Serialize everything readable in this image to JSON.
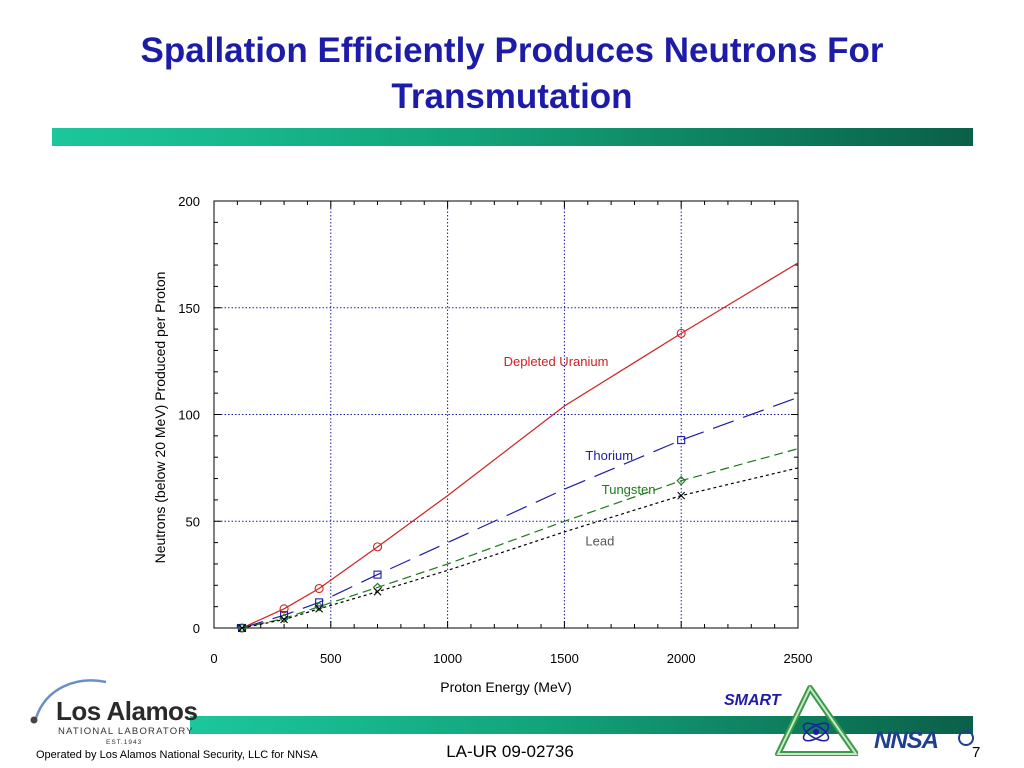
{
  "slide": {
    "title": "Spallation Efficiently Produces Neutrons For Transmutation",
    "report_id": "LA-UR 09-02736",
    "page_number": "7",
    "operator_note": "Operated by Los Alamos National Security, LLC for NNSA"
  },
  "logos": {
    "lanl_name": "Los Alamos",
    "lanl_sub": "NATIONAL LABORATORY",
    "lanl_est": "EST.1943",
    "smart": "SMART",
    "nnsa": "NNSA"
  },
  "colors": {
    "title": "#1c1ca8",
    "grid": "#1c1ca8",
    "uranium": "#d02020",
    "thorium": "#1c1ca8",
    "tungsten": "#1a7a1a",
    "lead": "#000000",
    "lead_label": "#555555"
  },
  "chart_data": {
    "type": "line",
    "title": "",
    "xlabel": "Proton Energy (MeV)",
    "ylabel": "Neutrons (below 20 MeV) Produced per Proton",
    "xlim": [
      0,
      2500
    ],
    "ylim": [
      0,
      200
    ],
    "xticks": [
      0,
      500,
      1000,
      1500,
      2000,
      2500
    ],
    "yticks": [
      0,
      50,
      100,
      150,
      200
    ],
    "grid": true,
    "series": [
      {
        "name": "Depleted Uranium",
        "marker": "circle",
        "dash": "solid",
        "color": "#d02020",
        "x": [
          120,
          300,
          450,
          700,
          1000,
          1500,
          2000,
          2500
        ],
        "y": [
          0,
          9,
          18.5,
          38,
          62,
          104,
          138,
          171
        ],
        "marker_x": [
          120,
          300,
          450,
          700,
          2000
        ],
        "marker_y": [
          0,
          9,
          18.5,
          38,
          138
        ]
      },
      {
        "name": "Thorium",
        "marker": "square",
        "dash": "long-dash",
        "color": "#1c1ca8",
        "x": [
          120,
          300,
          450,
          700,
          1000,
          1500,
          2000,
          2500
        ],
        "y": [
          0,
          6,
          12,
          25,
          40,
          65,
          88,
          108
        ],
        "marker_x": [
          120,
          300,
          450,
          700,
          2000
        ],
        "marker_y": [
          0,
          6,
          12,
          25,
          88
        ]
      },
      {
        "name": "Tungsten",
        "marker": "diamond",
        "dash": "dash",
        "color": "#1a7a1a",
        "x": [
          120,
          300,
          450,
          700,
          1000,
          1500,
          2000,
          2500
        ],
        "y": [
          0,
          4.5,
          10,
          19,
          30,
          50,
          69,
          84
        ],
        "marker_x": [
          120,
          300,
          450,
          700,
          2000
        ],
        "marker_y": [
          0,
          4.5,
          10,
          19,
          69
        ]
      },
      {
        "name": "Lead",
        "marker": "cross",
        "dash": "dot",
        "color": "#000000",
        "x": [
          120,
          300,
          450,
          700,
          1000,
          1500,
          2000,
          2500
        ],
        "y": [
          0,
          4,
          9,
          17,
          27,
          45,
          62,
          75
        ],
        "marker_x": [
          120,
          300,
          450,
          700,
          2000
        ],
        "marker_y": [
          0,
          4,
          9,
          17,
          62
        ]
      }
    ],
    "annotations": [
      {
        "text": "Depleted Uranium",
        "x": 1240,
        "y": 125,
        "series": 0
      },
      {
        "text": "Thorium",
        "x": 1590,
        "y": 81,
        "series": 1
      },
      {
        "text": "Tungsten",
        "x": 1660,
        "y": 65,
        "series": 2
      },
      {
        "text": "Lead",
        "x": 1590,
        "y": 41,
        "series": 3
      }
    ]
  }
}
